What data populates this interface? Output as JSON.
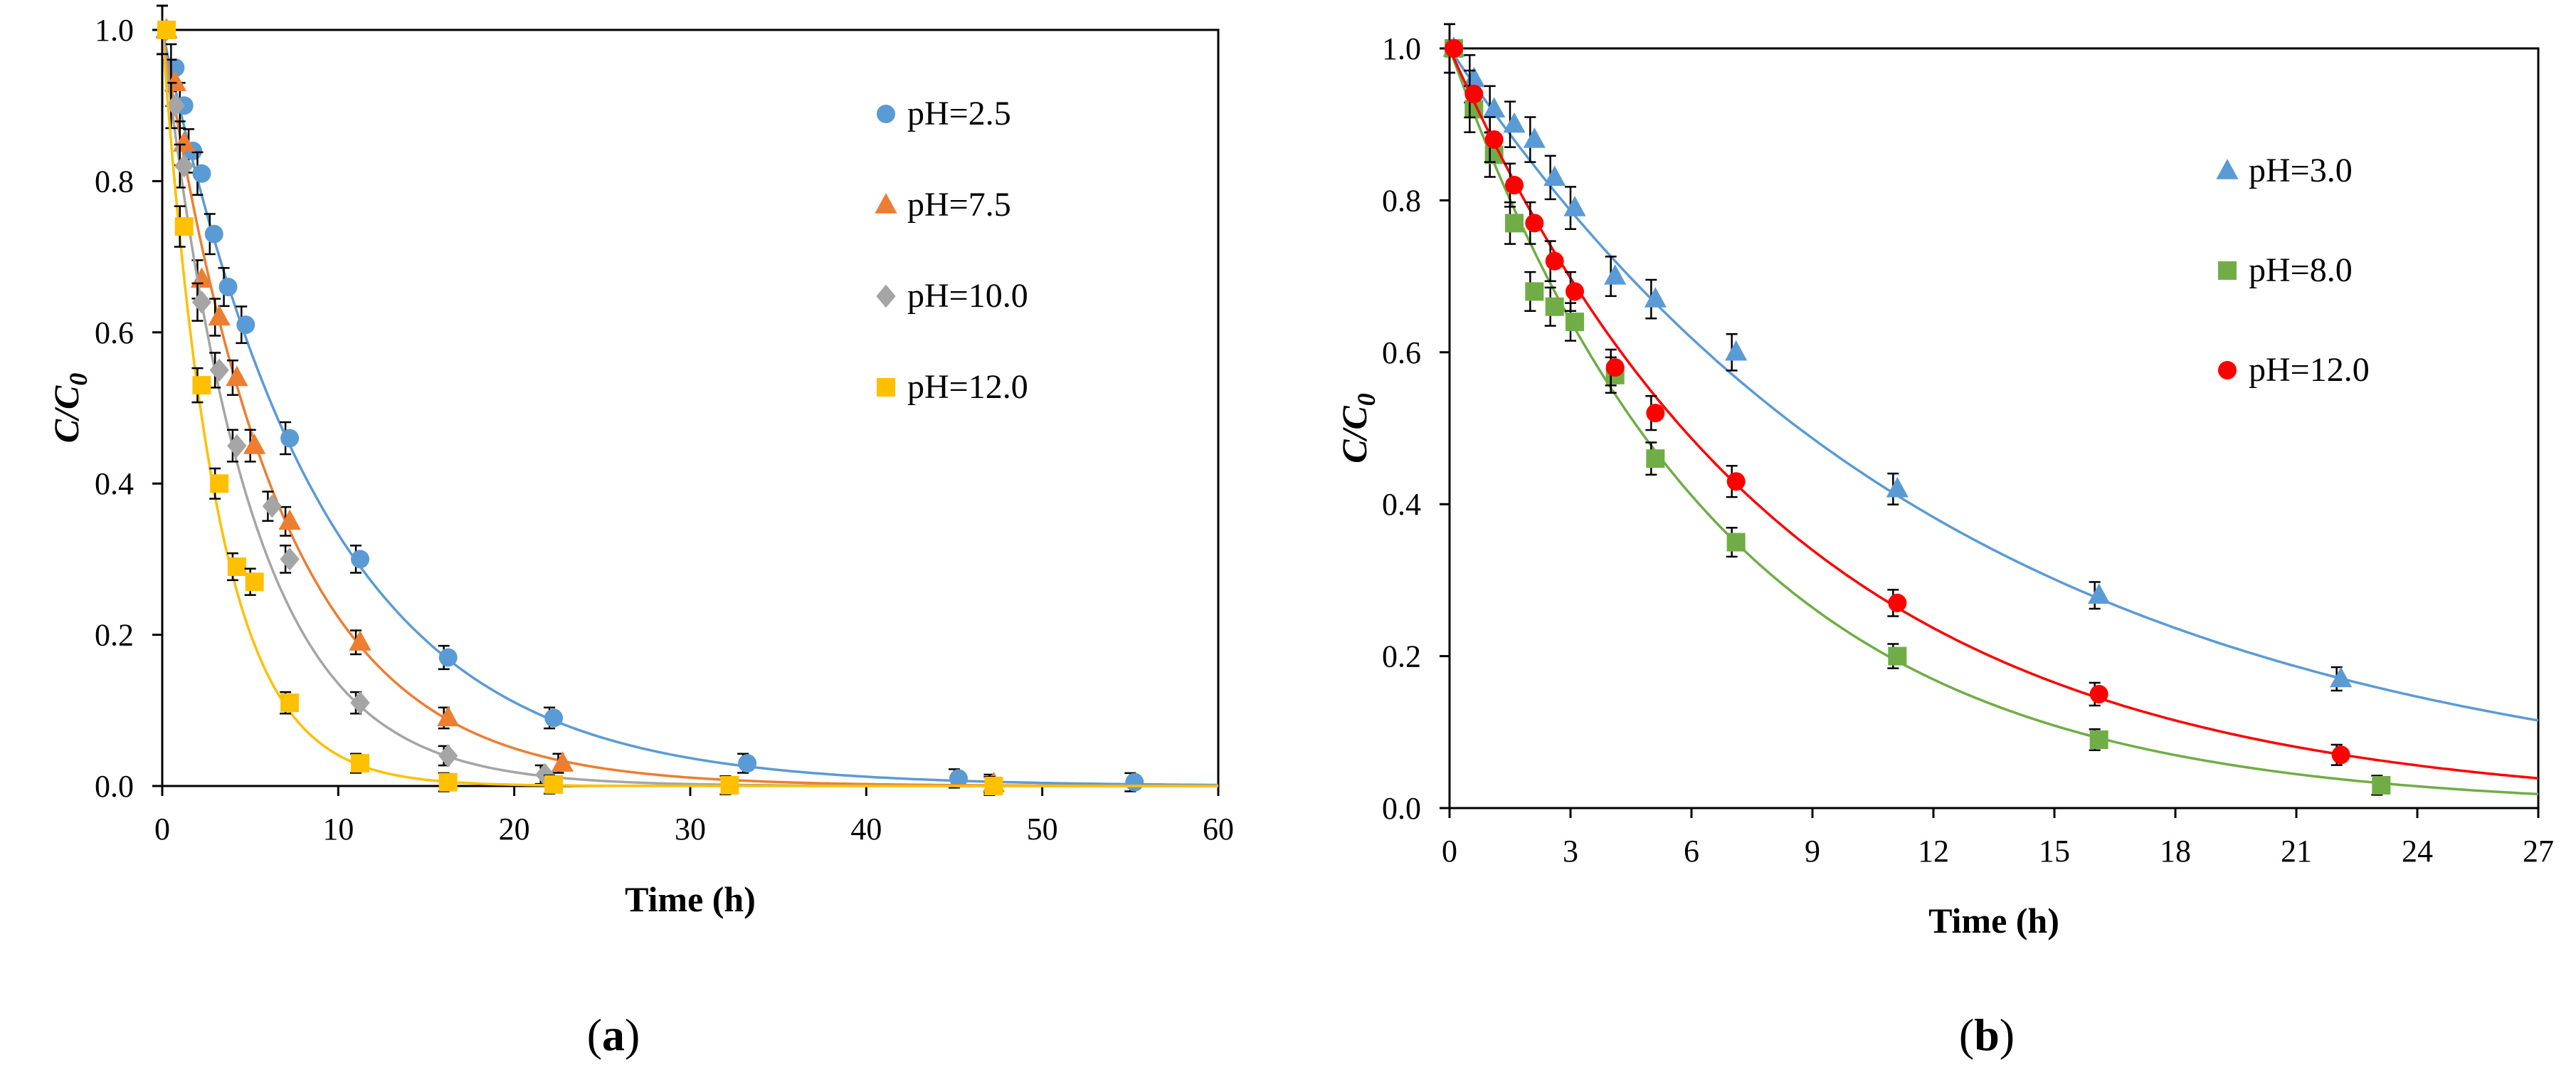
{
  "chart_data": [
    {
      "type": "scatter",
      "panel_label": "a",
      "xlabel": "Time (h)",
      "ylabel": "C/C0",
      "xlim": [
        0,
        60
      ],
      "ylim": [
        0,
        1.0
      ],
      "xticks": [
        "0",
        "10",
        "20",
        "30",
        "40",
        "50",
        "60"
      ],
      "yticks": [
        "0.0",
        "0.2",
        "0.4",
        "0.6",
        "0.8",
        "1.0"
      ],
      "grid": false,
      "legend_position": "top-right",
      "series": [
        {
          "name": "pH=2.5",
          "color": "#5b9bd5",
          "marker": "circle",
          "k": 0.11,
          "x": [
            0,
            0.5,
            1,
            1.5,
            2,
            2.7,
            3.5,
            4.5,
            7,
            11,
            16,
            22,
            33,
            45,
            55
          ],
          "y": [
            1.0,
            0.95,
            0.9,
            0.84,
            0.81,
            0.73,
            0.66,
            0.61,
            0.46,
            0.3,
            0.17,
            0.09,
            0.03,
            0.01,
            0.005
          ]
        },
        {
          "name": "pH=7.5",
          "color": "#ed7d31",
          "marker": "triangle",
          "k": 0.15,
          "x": [
            0,
            0.5,
            1,
            2,
            3,
            4,
            5,
            7,
            11,
            16,
            22.5,
            47
          ],
          "y": [
            1.0,
            0.93,
            0.85,
            0.67,
            0.62,
            0.54,
            0.45,
            0.35,
            0.19,
            0.09,
            0.03,
            0.003
          ]
        },
        {
          "name": "pH=10.0",
          "color": "#a5a5a5",
          "marker": "diamond",
          "k": 0.2,
          "x": [
            0,
            0.5,
            1,
            2,
            3,
            4,
            6,
            7,
            11,
            16,
            21.5
          ],
          "y": [
            1.0,
            0.9,
            0.82,
            0.64,
            0.55,
            0.45,
            0.37,
            0.3,
            0.11,
            0.04,
            0.015
          ]
        },
        {
          "name": "pH=12.0",
          "color": "#ffc000",
          "marker": "square",
          "k": 0.32,
          "x": [
            0,
            1,
            2,
            3,
            4,
            5,
            7,
            11,
            16,
            22,
            32,
            47
          ],
          "y": [
            1.0,
            0.74,
            0.53,
            0.4,
            0.29,
            0.27,
            0.11,
            0.03,
            0.005,
            0.002,
            0.001,
            0.0
          ]
        }
      ]
    },
    {
      "type": "scatter",
      "panel_label": "b",
      "xlabel": "Time (h)",
      "ylabel": "C/C0",
      "xlim": [
        0,
        27
      ],
      "ylim": [
        0,
        1.0
      ],
      "xticks": [
        "0",
        "3",
        "6",
        "9",
        "12",
        "15",
        "18",
        "21",
        "24",
        "27"
      ],
      "yticks": [
        "0.0",
        "0.2",
        "0.4",
        "0.6",
        "0.8",
        "1.0"
      ],
      "grid": false,
      "legend_position": "top-right",
      "series": [
        {
          "name": "pH=3.0",
          "color": "#5b9bd5",
          "marker": "triangle",
          "k": 0.08,
          "x": [
            0,
            0.5,
            1,
            1.5,
            2,
            2.5,
            3,
            4,
            5,
            7,
            11,
            16,
            22
          ],
          "y": [
            1.0,
            0.96,
            0.92,
            0.9,
            0.88,
            0.83,
            0.79,
            0.7,
            0.67,
            0.6,
            0.42,
            0.28,
            0.17
          ]
        },
        {
          "name": "pH=8.0",
          "color": "#70ad47",
          "marker": "square",
          "k": 0.148,
          "x": [
            0,
            0.5,
            1,
            1.5,
            2,
            2.5,
            3,
            4,
            5,
            7,
            11,
            16,
            23
          ],
          "y": [
            1.0,
            0.92,
            0.86,
            0.77,
            0.68,
            0.66,
            0.64,
            0.57,
            0.46,
            0.35,
            0.2,
            0.09,
            0.03
          ]
        },
        {
          "name": "pH=12.0",
          "color": "#ff0000",
          "marker": "circle",
          "k": 0.12,
          "x": [
            0,
            0.5,
            1,
            1.5,
            2,
            2.5,
            3,
            4,
            5,
            7,
            11,
            16,
            22
          ],
          "y": [
            1.0,
            0.94,
            0.88,
            0.82,
            0.77,
            0.72,
            0.68,
            0.58,
            0.52,
            0.43,
            0.27,
            0.15,
            0.07
          ]
        }
      ]
    }
  ]
}
